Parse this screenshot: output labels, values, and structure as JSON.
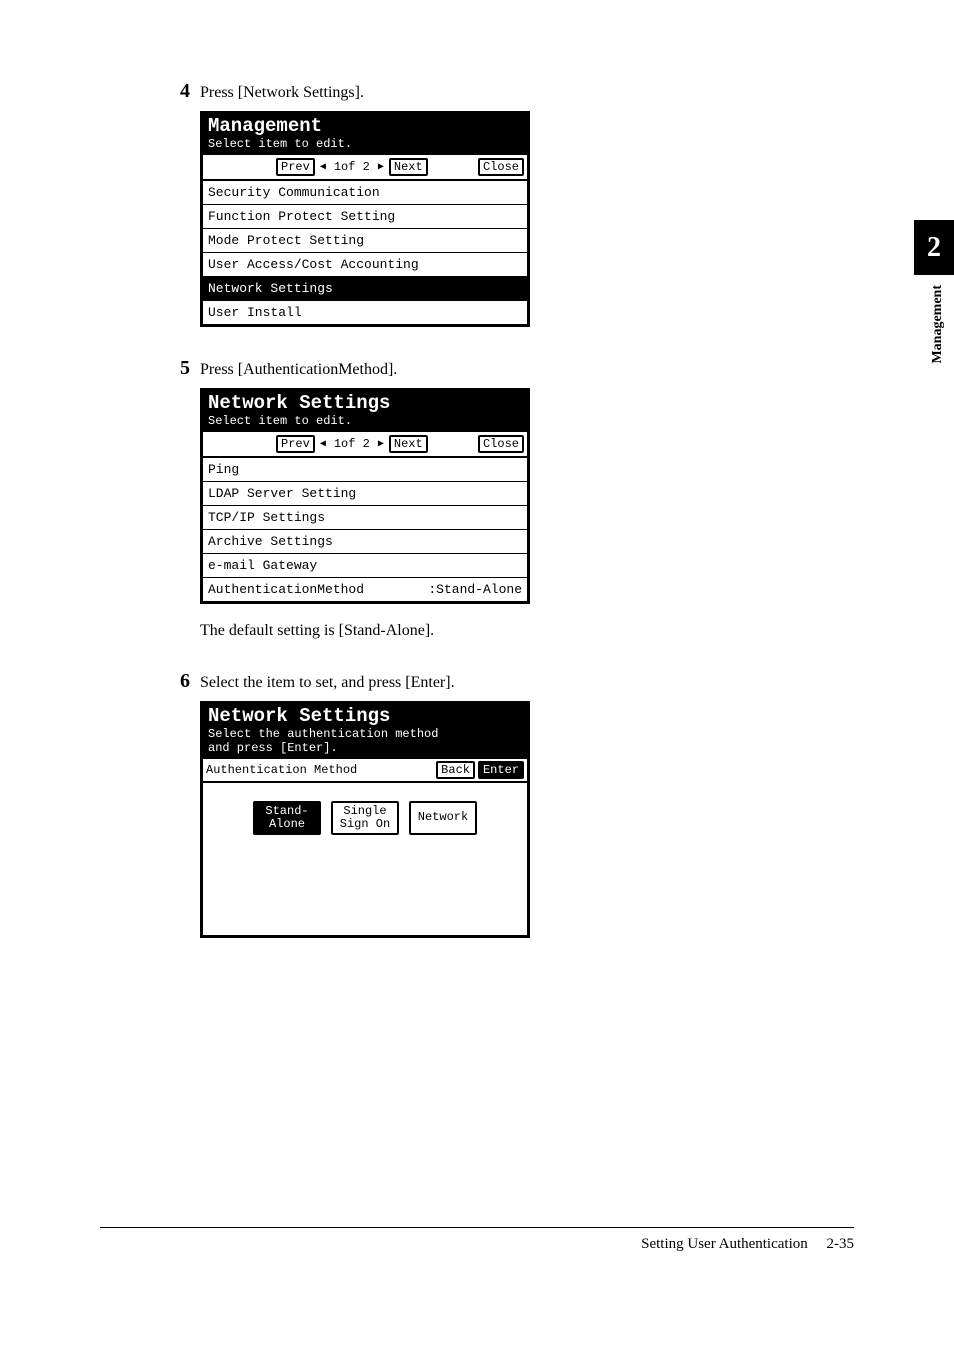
{
  "side_tab": {
    "number": "2",
    "label": "Management"
  },
  "steps": {
    "s4": {
      "num": "4",
      "text": "Press [Network Settings]."
    },
    "s5": {
      "num": "5",
      "text": "Press [AuthenticationMethod]."
    },
    "s5_note": "The default setting is [Stand-Alone].",
    "s6": {
      "num": "6",
      "text": "Select the item to set, and press [Enter]."
    }
  },
  "panel1": {
    "title": "Management",
    "subtitle": "Select item to edit.",
    "nav": {
      "prev": "Prev",
      "page": "1of  2",
      "next": "Next",
      "close": "Close"
    },
    "items": [
      {
        "label": "Security Communication",
        "selected": false
      },
      {
        "label": "Function Protect Setting",
        "selected": false
      },
      {
        "label": "Mode Protect Setting",
        "selected": false
      },
      {
        "label": "User Access/Cost Accounting",
        "selected": false
      },
      {
        "label": "Network Settings",
        "selected": true
      },
      {
        "label": "User Install",
        "selected": false
      }
    ]
  },
  "panel2": {
    "title": "Network Settings",
    "subtitle": "Select item to edit.",
    "nav": {
      "prev": "Prev",
      "page": "1of  2",
      "next": "Next",
      "close": "Close"
    },
    "items": [
      {
        "label": "Ping",
        "value": "",
        "selected": false
      },
      {
        "label": "LDAP Server Setting",
        "value": "",
        "selected": false
      },
      {
        "label": "TCP/IP Settings",
        "value": "",
        "selected": false
      },
      {
        "label": "Archive Settings",
        "value": "",
        "selected": false
      },
      {
        "label": "e-mail Gateway",
        "value": "",
        "selected": false
      },
      {
        "label": "AuthenticationMethod",
        "value": ":Stand-Alone",
        "selected": false
      }
    ]
  },
  "panel3": {
    "title": "Network Settings",
    "subtitle": "Select the authentication method\nand press [Enter].",
    "header_label": "Authentication Method",
    "back": "Back",
    "enter": "Enter",
    "options": [
      {
        "label": "Stand-\nAlone",
        "selected": true
      },
      {
        "label": "Single\nSign On",
        "selected": false
      },
      {
        "label": "Network",
        "selected": false
      }
    ]
  },
  "footer": {
    "title": "Setting User Authentication",
    "page": "2-35"
  },
  "colors": {
    "bg": "#ffffff",
    "fg": "#000000"
  }
}
